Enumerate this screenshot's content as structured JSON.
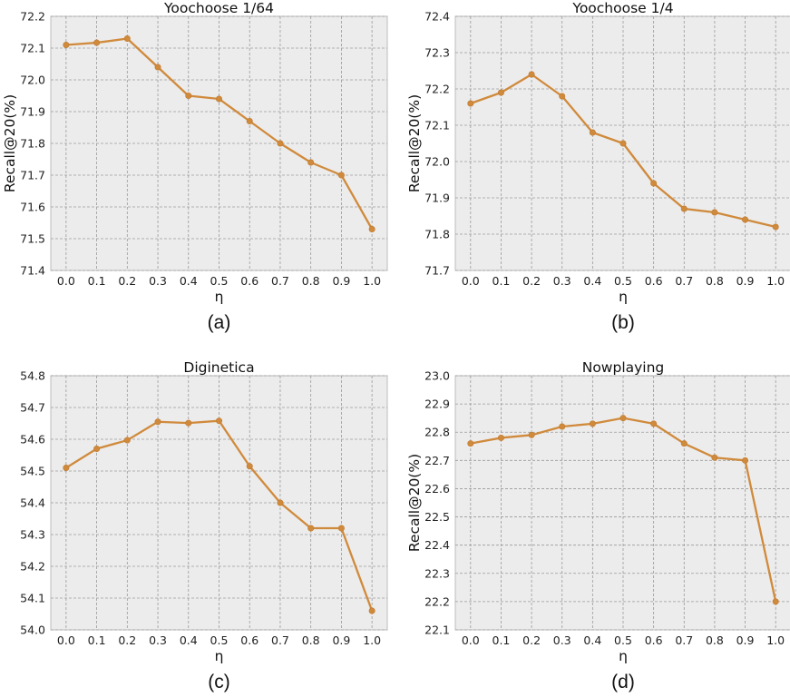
{
  "chart_data": [
    {
      "type": "line",
      "title": "Yoochoose 1/64",
      "xlabel": "η",
      "ylabel": "Recall@20(%)",
      "caption": "(a)",
      "x": [
        0.0,
        0.1,
        0.2,
        0.3,
        0.4,
        0.5,
        0.6,
        0.7,
        0.8,
        0.9,
        1.0
      ],
      "x_tick_labels": [
        "0.0",
        "0.1",
        "0.2",
        "0.3",
        "0.4",
        "0.5",
        "0.6",
        "0.7",
        "0.8",
        "0.9",
        "1.0"
      ],
      "ylim": [
        71.4,
        72.2
      ],
      "y_ticks": [
        71.4,
        71.5,
        71.6,
        71.7,
        71.8,
        71.9,
        72.0,
        72.1,
        72.2
      ],
      "y_tick_labels": [
        "71.4",
        "71.5",
        "71.6",
        "71.7",
        "71.8",
        "71.9",
        "72.0",
        "72.1",
        "72.2"
      ],
      "grid": true,
      "series": [
        {
          "values": [
            72.11,
            72.117,
            72.13,
            72.04,
            71.95,
            71.94,
            71.87,
            71.8,
            71.74,
            71.7,
            71.53
          ]
        }
      ]
    },
    {
      "type": "line",
      "title": "Yoochoose 1/4",
      "xlabel": "η",
      "ylabel": "Recall@20(%)",
      "caption": "(b)",
      "x": [
        0.0,
        0.1,
        0.2,
        0.3,
        0.4,
        0.5,
        0.6,
        0.7,
        0.8,
        0.9,
        1.0
      ],
      "x_tick_labels": [
        "0.0",
        "0.1",
        "0.2",
        "0.3",
        "0.4",
        "0.5",
        "0.6",
        "0.7",
        "0.8",
        "0.9",
        "1.0"
      ],
      "ylim": [
        71.7,
        72.4
      ],
      "y_ticks": [
        71.7,
        71.8,
        71.9,
        72.0,
        72.1,
        72.2,
        72.3,
        72.4
      ],
      "y_tick_labels": [
        "71.7",
        "71.8",
        "71.9",
        "72.0",
        "72.1",
        "72.2",
        "72.3",
        "72.4"
      ],
      "grid": true,
      "series": [
        {
          "values": [
            72.16,
            72.19,
            72.24,
            72.18,
            72.08,
            72.05,
            71.94,
            71.87,
            71.86,
            71.84,
            71.82
          ]
        }
      ]
    },
    {
      "type": "line",
      "title": "Diginetica",
      "xlabel": "η",
      "ylabel": "",
      "caption": "(c)",
      "x": [
        0.0,
        0.1,
        0.2,
        0.3,
        0.4,
        0.5,
        0.6,
        0.7,
        0.8,
        0.9,
        1.0
      ],
      "x_tick_labels": [
        "0.0",
        "0.1",
        "0.2",
        "0.3",
        "0.4",
        "0.5",
        "0.6",
        "0.7",
        "0.8",
        "0.9",
        "1.0"
      ],
      "ylim": [
        54.0,
        54.8
      ],
      "y_ticks": [
        54.0,
        54.1,
        54.2,
        54.3,
        54.4,
        54.5,
        54.6,
        54.7,
        54.8
      ],
      "y_tick_labels": [
        "54.0",
        "54.1",
        "54.2",
        "54.3",
        "54.4",
        "54.5",
        "54.6",
        "54.7",
        "54.8"
      ],
      "grid": true,
      "series": [
        {
          "values": [
            54.51,
            54.57,
            54.597,
            54.655,
            54.651,
            54.658,
            54.515,
            54.4,
            54.32,
            54.32,
            54.06
          ]
        }
      ]
    },
    {
      "type": "line",
      "title": "Nowplaying",
      "xlabel": "η",
      "ylabel": "Recall@20(%)",
      "caption": "(d)",
      "x": [
        0.0,
        0.1,
        0.2,
        0.3,
        0.4,
        0.5,
        0.6,
        0.7,
        0.8,
        0.9,
        1.0
      ],
      "x_tick_labels": [
        "0.0",
        "0.1",
        "0.2",
        "0.3",
        "0.4",
        "0.5",
        "0.6",
        "0.7",
        "0.8",
        "0.9",
        "1.0"
      ],
      "ylim": [
        22.1,
        23.0
      ],
      "y_ticks": [
        22.1,
        22.2,
        22.3,
        22.4,
        22.5,
        22.6,
        22.7,
        22.8,
        22.9,
        23.0
      ],
      "y_tick_labels": [
        "22.1",
        "22.2",
        "22.3",
        "22.4",
        "22.5",
        "22.6",
        "22.7",
        "22.8",
        "22.9",
        "23.0"
      ],
      "grid": true,
      "series": [
        {
          "values": [
            22.76,
            22.78,
            22.79,
            22.82,
            22.83,
            22.85,
            22.83,
            22.76,
            22.71,
            22.7,
            22.2
          ]
        }
      ]
    }
  ],
  "colors": {
    "line": "#d08a3c",
    "plot_background": "#ececec",
    "grid": "#9a9a9a"
  }
}
